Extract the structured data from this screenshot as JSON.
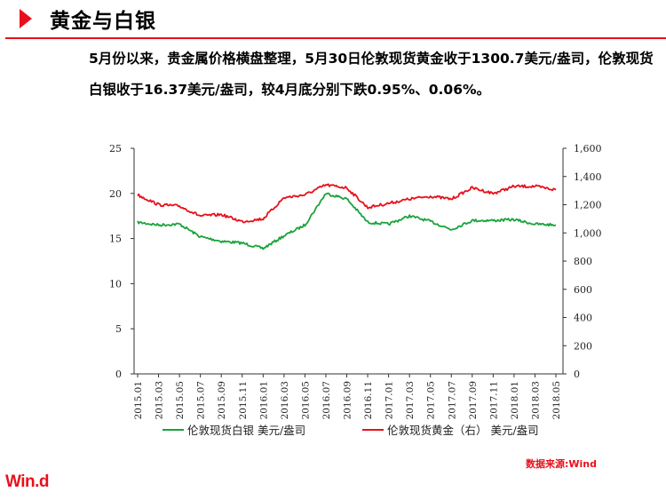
{
  "header": {
    "title": "黄金与白银"
  },
  "paragraph": "5月份以来，贵金属价格横盘整理，5月30日伦敦现货黄金收于1300.7美元/盎司，伦敦现货白银收于16.37美元/盎司，较4月底分别下跌0.95%、0.06%。",
  "source": "数据来源:Wind",
  "logo": "Win.d",
  "colors": {
    "accent": "#e8101b",
    "silver": "#1aa33b",
    "gold": "#e8101b"
  },
  "chart_data": {
    "type": "line",
    "x": [
      "2015.01",
      "2015.03",
      "2015.05",
      "2015.07",
      "2015.09",
      "2015.11",
      "2016.01",
      "2016.03",
      "2016.05",
      "2016.07",
      "2016.09",
      "2016.11",
      "2017.01",
      "2017.03",
      "2017.05",
      "2017.07",
      "2017.09",
      "2017.11",
      "2018.01",
      "2018.03",
      "2018.05"
    ],
    "series": [
      {
        "name": "伦敦现货白银 美元/盎司",
        "axis": "left",
        "color": "#1aa33b",
        "values": [
          16.8,
          16.5,
          16.6,
          15.2,
          14.7,
          14.5,
          13.9,
          15.3,
          16.5,
          20.0,
          19.4,
          16.8,
          16.6,
          17.5,
          16.9,
          16.0,
          17.0,
          17.0,
          17.1,
          16.6,
          16.5
        ]
      },
      {
        "name": "伦敦现货黄金（右） 美元/盎司",
        "axis": "right",
        "color": "#e8101b",
        "values": [
          1270,
          1200,
          1190,
          1120,
          1130,
          1080,
          1100,
          1250,
          1270,
          1340,
          1320,
          1180,
          1210,
          1240,
          1260,
          1240,
          1320,
          1280,
          1330,
          1330,
          1305
        ]
      }
    ],
    "y_left": {
      "min": 0,
      "max": 25,
      "ticks": [
        "0",
        "5",
        "10",
        "15",
        "20",
        "25"
      ]
    },
    "y_right": {
      "min": 0,
      "max": 1600,
      "ticks": [
        "0",
        "200",
        "400",
        "600",
        "800",
        "1,000",
        "1,200",
        "1,400",
        "1,600"
      ]
    },
    "legend_position": "bottom",
    "grid": false
  }
}
